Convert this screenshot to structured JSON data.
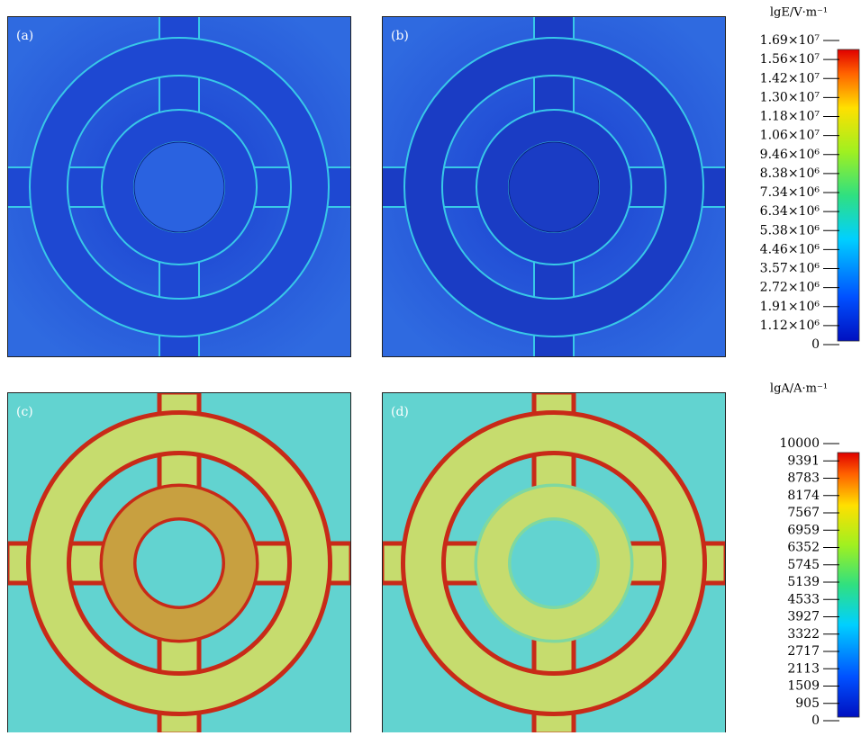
{
  "panels": [
    {
      "label": "(a)"
    },
    {
      "label": "(b)"
    },
    {
      "label": "(c)"
    },
    {
      "label": "(d)"
    }
  ],
  "colorbars": [
    {
      "title": "lgE/V·m⁻¹",
      "ticks": [
        "1.69×10⁷",
        "1.56×10⁷",
        "1.42×10⁷",
        "1.30×10⁷",
        "1.18×10⁷",
        "1.06×10⁷",
        "9.46×10⁶",
        "8.38×10⁶",
        "7.34×10⁶",
        "6.34×10⁶",
        "5.38×10⁶",
        "4.46×10⁶",
        "3.57×10⁶",
        "2.72×10⁶",
        "1.91×10⁶",
        "1.12×10⁶",
        "0"
      ]
    },
    {
      "title": "lgA/A·m⁻¹",
      "ticks": [
        "10000",
        "9391",
        "8783",
        "8174",
        "7567",
        "6959",
        "6352",
        "5745",
        "5139",
        "4533",
        "3927",
        "3322",
        "2717",
        "2113",
        "1509",
        "905",
        "0"
      ]
    }
  ]
}
